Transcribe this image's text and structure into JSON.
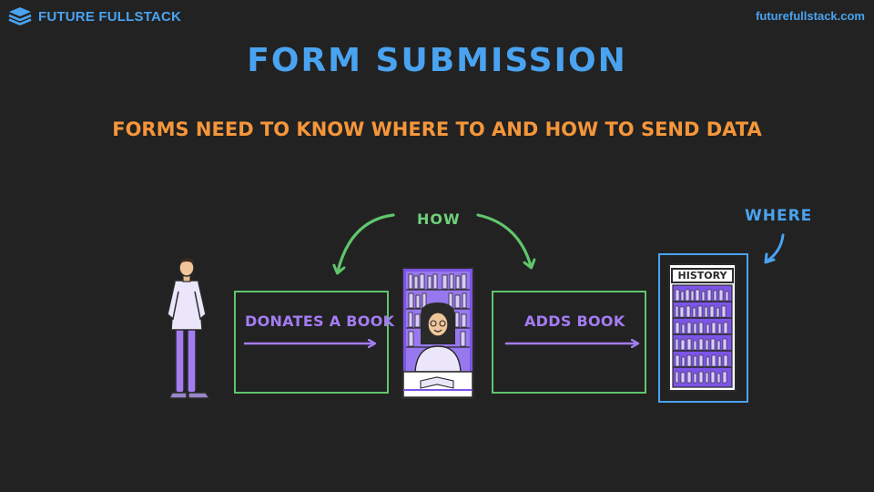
{
  "brand": {
    "name": "FUTURE FULLSTACK",
    "logo_icon": "stack-layers-icon",
    "url": "futurefullstack.com"
  },
  "slide": {
    "title": "FORM SUBMISSION",
    "subtitle": "FORMS NEED TO KNOW WHERE TO AND HOW TO SEND DATA"
  },
  "diagram": {
    "how_label": "HOW",
    "where_label": "WHERE",
    "step1_label": "DONATES A BOOK",
    "step2_label": "ADDS BOOK",
    "shelf_label": "HISTORY"
  },
  "colors": {
    "background": "#222222",
    "blue": "#4aa3f0",
    "orange": "#f5963a",
    "green": "#5fc66c",
    "purple": "#a47cf2"
  }
}
